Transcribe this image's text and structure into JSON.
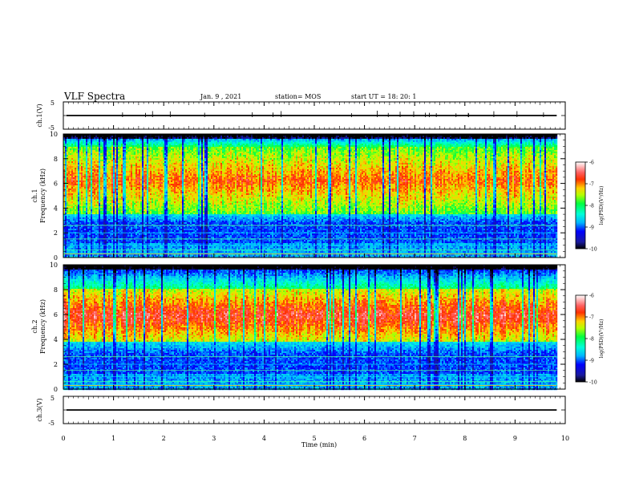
{
  "header": {
    "title": "VLF Spectra",
    "date": "Jan. 9 , 2021",
    "station": "station= MOS",
    "start": "start UT =  18: 20: 1"
  },
  "chart_data": [
    {
      "type": "line",
      "name": "ch1-waveform",
      "ylabel": "ch.1(V)",
      "yticks": [
        "5",
        "-5"
      ],
      "ylim": [
        -5,
        5
      ],
      "xlim": [
        0,
        10
      ],
      "trace_level": 0
    },
    {
      "type": "heatmap",
      "name": "ch1-spectrogram",
      "ylabel": "ch.1 Frequency (kHz)",
      "ylabel_line1": "ch.1",
      "ylabel_line2": "Frequency (kHz)",
      "ylim": [
        0,
        10
      ],
      "yticks": [
        "10",
        "8",
        "6",
        "4",
        "2",
        "0"
      ],
      "xlim": [
        0,
        10
      ],
      "data_end_min": 9.83,
      "emission_band_khz": [
        3.5,
        9.0
      ],
      "colorbar": {
        "label": "log(PSD)(V²/Hz)",
        "range": [
          -10,
          -6
        ],
        "ticks": [
          "-6",
          "-7",
          "-8",
          "-9",
          "-10"
        ]
      }
    },
    {
      "type": "heatmap",
      "name": "ch2-spectrogram",
      "ylabel": "ch.2 Frequency (kHz)",
      "ylabel_line1": "ch.2",
      "ylabel_line2": "Frequency (kHz)",
      "ylim": [
        0,
        10
      ],
      "yticks": [
        "10",
        "8",
        "6",
        "4",
        "2",
        "0"
      ],
      "xlim": [
        0,
        10
      ],
      "data_end_min": 9.83,
      "emission_band_khz": [
        3.8,
        8.0
      ],
      "colorbar": {
        "label": "log(PSD)(V²/Hz)",
        "range": [
          -10,
          -6
        ],
        "ticks": [
          "-6",
          "-7",
          "-8",
          "-9",
          "-10"
        ]
      }
    },
    {
      "type": "line",
      "name": "ch3-waveform",
      "ylabel": "ch.3(V)",
      "yticks": [
        "5",
        "-5"
      ],
      "ylim": [
        -5,
        5
      ],
      "xlim": [
        0,
        10
      ],
      "trace_level": 0
    }
  ],
  "xaxis": {
    "label": "Time (min)",
    "ticks": [
      "0",
      "1",
      "2",
      "3",
      "4",
      "5",
      "6",
      "7",
      "8",
      "9",
      "10"
    ]
  }
}
